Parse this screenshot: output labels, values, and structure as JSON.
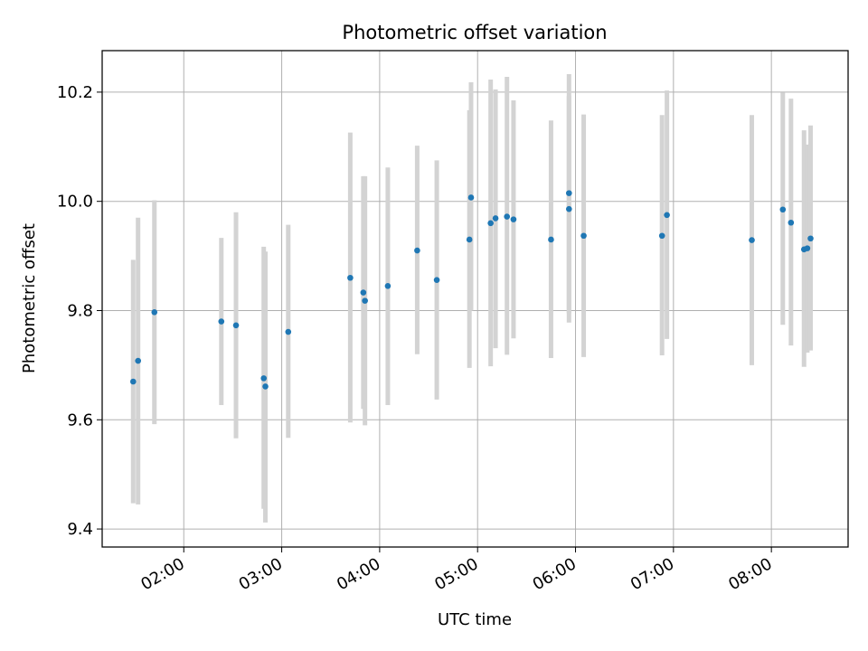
{
  "chart_data": {
    "type": "scatter",
    "title": "Photometric offset variation",
    "xlabel": "UTC time",
    "ylabel": "Photometric offset",
    "x_tick_labels": [
      "02:00",
      "03:00",
      "04:00",
      "05:00",
      "06:00",
      "07:00",
      "08:00"
    ],
    "y_tick_labels": [
      "9.4",
      "9.6",
      "9.8",
      "10.0",
      "10.2"
    ],
    "xlim": [
      "01:10",
      "08:47"
    ],
    "ylim": [
      9.367,
      10.276
    ],
    "grid": true,
    "colors": {
      "marker": "#1f77b4",
      "errorbar": "#d3d3d3",
      "grid": "#b0b0b0"
    },
    "points": [
      {
        "t": "01:29",
        "y": 9.67,
        "lo": 9.447,
        "hi": 9.893
      },
      {
        "t": "01:32",
        "y": 9.708,
        "lo": 9.445,
        "hi": 9.97
      },
      {
        "t": "01:42",
        "y": 9.797,
        "lo": 9.592,
        "hi": 10.002
      },
      {
        "t": "02:23",
        "y": 9.78,
        "lo": 9.627,
        "hi": 9.933
      },
      {
        "t": "02:32",
        "y": 9.773,
        "lo": 9.566,
        "hi": 9.98
      },
      {
        "t": "02:49",
        "y": 9.676,
        "lo": 9.437,
        "hi": 9.917
      },
      {
        "t": "02:50",
        "y": 9.661,
        "lo": 9.412,
        "hi": 9.908
      },
      {
        "t": "03:04",
        "y": 9.761,
        "lo": 9.567,
        "hi": 9.957
      },
      {
        "t": "03:42",
        "y": 9.86,
        "lo": 9.595,
        "hi": 10.126
      },
      {
        "t": "03:50",
        "y": 9.833,
        "lo": 9.62,
        "hi": 10.046
      },
      {
        "t": "03:51",
        "y": 9.818,
        "lo": 9.59,
        "hi": 10.046
      },
      {
        "t": "04:05",
        "y": 9.845,
        "lo": 9.627,
        "hi": 10.062
      },
      {
        "t": "04:23",
        "y": 9.91,
        "lo": 9.72,
        "hi": 10.102
      },
      {
        "t": "04:35",
        "y": 9.856,
        "lo": 9.637,
        "hi": 10.075
      },
      {
        "t": "04:55",
        "y": 9.93,
        "lo": 9.695,
        "hi": 10.167
      },
      {
        "t": "04:56",
        "y": 10.007,
        "lo": 9.8,
        "hi": 10.218
      },
      {
        "t": "05:08",
        "y": 9.96,
        "lo": 9.698,
        "hi": 10.223
      },
      {
        "t": "05:11",
        "y": 9.969,
        "lo": 9.731,
        "hi": 10.205
      },
      {
        "t": "05:18",
        "y": 9.972,
        "lo": 9.719,
        "hi": 10.228
      },
      {
        "t": "05:22",
        "y": 9.967,
        "lo": 9.749,
        "hi": 10.185
      },
      {
        "t": "05:45",
        "y": 9.93,
        "lo": 9.713,
        "hi": 10.148
      },
      {
        "t": "05:56",
        "y": 10.015,
        "lo": 9.795,
        "hi": 10.233
      },
      {
        "t": "05:56",
        "y": 9.986,
        "lo": 9.778,
        "hi": 10.193
      },
      {
        "t": "06:05",
        "y": 9.937,
        "lo": 9.715,
        "hi": 10.159
      },
      {
        "t": "06:53",
        "y": 9.937,
        "lo": 9.718,
        "hi": 10.158
      },
      {
        "t": "06:56",
        "y": 9.975,
        "lo": 9.748,
        "hi": 10.203
      },
      {
        "t": "07:48",
        "y": 9.929,
        "lo": 9.7,
        "hi": 10.158
      },
      {
        "t": "08:07",
        "y": 9.985,
        "lo": 9.774,
        "hi": 10.199
      },
      {
        "t": "08:12",
        "y": 9.961,
        "lo": 9.736,
        "hi": 10.188
      },
      {
        "t": "08:20",
        "y": 9.912,
        "lo": 9.697,
        "hi": 10.13
      },
      {
        "t": "08:22",
        "y": 9.914,
        "lo": 9.723,
        "hi": 10.104
      },
      {
        "t": "08:24",
        "y": 9.932,
        "lo": 9.727,
        "hi": 10.139
      }
    ]
  }
}
